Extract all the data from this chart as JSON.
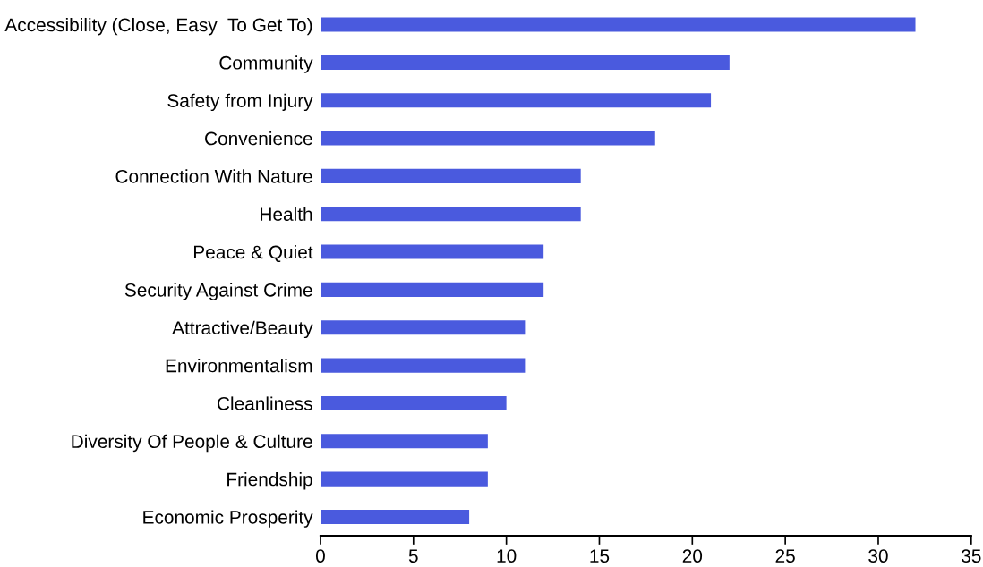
{
  "chart_data": {
    "type": "bar",
    "orientation": "horizontal",
    "categories": [
      "Accessibility (Close, Easy  To Get To)",
      "Community",
      "Safety from Injury",
      "Convenience",
      "Connection With Nature",
      "Health",
      "Peace & Quiet",
      "Security Against Crime",
      "Attractive/Beauty",
      "Environmentalism",
      "Cleanliness",
      "Diversity Of People & Culture",
      "Friendship",
      "Economic Prosperity"
    ],
    "values": [
      32,
      22,
      21,
      18,
      14,
      14,
      12,
      12,
      11,
      11,
      10,
      9,
      9,
      8
    ],
    "color": "#4a5ade",
    "xlim": [
      0,
      35
    ],
    "xticks": [
      0,
      5,
      10,
      15,
      20,
      25,
      30,
      35
    ],
    "grid": false,
    "legend": false
  }
}
